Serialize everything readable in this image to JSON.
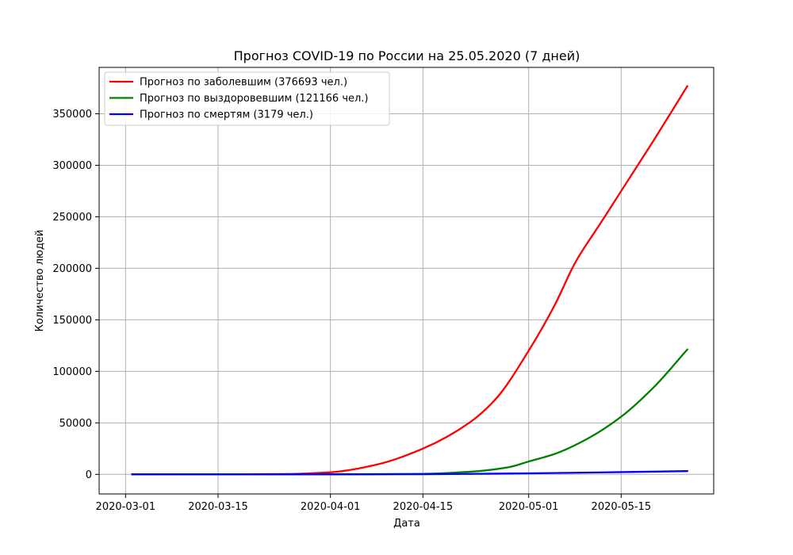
{
  "chart_data": {
    "type": "line",
    "title": "Прогноз COVID-19 по России на 25.05.2020 (7 дней)",
    "xlabel": "Дата",
    "ylabel": "Количество людей",
    "xlim": [
      "2020-02-26",
      "2020-05-29"
    ],
    "ylim": [
      -19000,
      395000
    ],
    "grid": true,
    "legend_position": "top-left",
    "x_ticks": [
      "2020-03-01",
      "2020-03-15",
      "2020-04-01",
      "2020-04-15",
      "2020-05-01",
      "2020-05-15"
    ],
    "y_ticks": [
      0,
      50000,
      100000,
      150000,
      200000,
      250000,
      300000,
      350000
    ],
    "series": [
      {
        "name": "Прогноз по заболевшим (376693 чел.)",
        "color": "#ff0000",
        "x": [
          "2020-03-02",
          "2020-03-15",
          "2020-03-25",
          "2020-04-01",
          "2020-04-08",
          "2020-04-15",
          "2020-04-22",
          "2020-04-26",
          "2020-05-01",
          "2020-05-05",
          "2020-05-08",
          "2020-05-12",
          "2020-05-15",
          "2020-05-20",
          "2020-05-25"
        ],
        "y": [
          0,
          0,
          300,
          2000,
          9500,
          25000,
          50000,
          73000,
          120000,
          165000,
          205000,
          245000,
          275000,
          325000,
          376693
        ]
      },
      {
        "name": "Прогноз по выздоровевшим (121166 чел.)",
        "color": "#008000",
        "x": [
          "2020-03-02",
          "2020-04-01",
          "2020-04-15",
          "2020-04-22",
          "2020-04-28",
          "2020-05-01",
          "2020-05-05",
          "2020-05-10",
          "2020-05-15",
          "2020-05-20",
          "2020-05-25"
        ],
        "y": [
          0,
          0,
          500,
          2500,
          7000,
          12500,
          20000,
          35000,
          56000,
          85000,
          121166
        ]
      },
      {
        "name": "Прогноз по смертям (3179 чел.)",
        "color": "#0000ff",
        "x": [
          "2020-03-02",
          "2020-04-15",
          "2020-05-01",
          "2020-05-15",
          "2020-05-25"
        ],
        "y": [
          0,
          200,
          1000,
          2200,
          3179
        ]
      }
    ]
  }
}
